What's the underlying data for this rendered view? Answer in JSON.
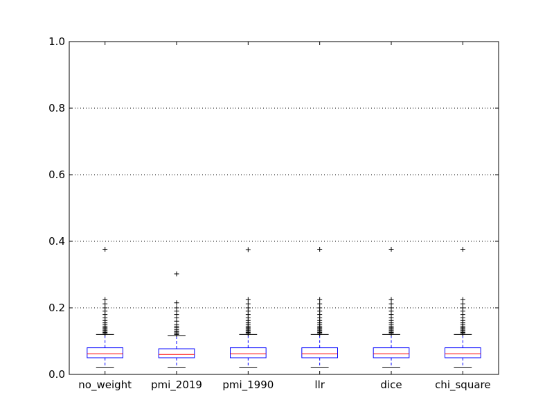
{
  "chart_data": {
    "type": "box",
    "title": "",
    "xlabel": "",
    "ylabel": "",
    "ylim": [
      0.0,
      1.0
    ],
    "yticks": [
      0.0,
      0.2,
      0.4,
      0.6,
      0.8,
      1.0
    ],
    "ytick_labels": [
      "0.0",
      "0.2",
      "0.4",
      "0.6",
      "0.8",
      "1.0"
    ],
    "grid": "y-dotted",
    "categories": [
      "no_weight",
      "pmi_2019",
      "pmi_1990",
      "llr",
      "dice",
      "chi_square"
    ],
    "boxes": [
      {
        "whislo": 0.02,
        "q1": 0.05,
        "med": 0.062,
        "q3": 0.08,
        "whishi": 0.12,
        "fliers": [
          0.122,
          0.126,
          0.13,
          0.133,
          0.137,
          0.14,
          0.145,
          0.15,
          0.155,
          0.162,
          0.17,
          0.18,
          0.19,
          0.2,
          0.212,
          0.225,
          0.376
        ]
      },
      {
        "whislo": 0.02,
        "q1": 0.05,
        "med": 0.06,
        "q3": 0.077,
        "whishi": 0.117,
        "fliers": [
          0.12,
          0.123,
          0.127,
          0.13,
          0.134,
          0.14,
          0.145,
          0.15,
          0.16,
          0.17,
          0.18,
          0.19,
          0.2,
          0.215,
          0.302
        ]
      },
      {
        "whislo": 0.02,
        "q1": 0.05,
        "med": 0.062,
        "q3": 0.08,
        "whishi": 0.12,
        "fliers": [
          0.122,
          0.126,
          0.13,
          0.133,
          0.137,
          0.14,
          0.145,
          0.15,
          0.155,
          0.162,
          0.17,
          0.18,
          0.19,
          0.2,
          0.212,
          0.225,
          0.375
        ]
      },
      {
        "whislo": 0.02,
        "q1": 0.05,
        "med": 0.062,
        "q3": 0.08,
        "whishi": 0.12,
        "fliers": [
          0.122,
          0.126,
          0.13,
          0.133,
          0.137,
          0.14,
          0.145,
          0.15,
          0.155,
          0.162,
          0.17,
          0.18,
          0.19,
          0.2,
          0.212,
          0.225,
          0.376
        ]
      },
      {
        "whislo": 0.02,
        "q1": 0.05,
        "med": 0.062,
        "q3": 0.08,
        "whishi": 0.12,
        "fliers": [
          0.122,
          0.126,
          0.13,
          0.133,
          0.137,
          0.14,
          0.145,
          0.15,
          0.155,
          0.162,
          0.17,
          0.18,
          0.19,
          0.2,
          0.212,
          0.225,
          0.376
        ]
      },
      {
        "whislo": 0.02,
        "q1": 0.05,
        "med": 0.062,
        "q3": 0.08,
        "whishi": 0.12,
        "fliers": [
          0.122,
          0.126,
          0.13,
          0.133,
          0.137,
          0.14,
          0.145,
          0.15,
          0.155,
          0.162,
          0.17,
          0.18,
          0.19,
          0.2,
          0.212,
          0.225,
          0.376
        ]
      }
    ],
    "colors": {
      "box": "#0000ff",
      "whisker": "#0000ff",
      "cap": "#000000",
      "median": "#ff0000",
      "flier": "#000000",
      "grid": "#000000",
      "axes": "#000000"
    }
  }
}
